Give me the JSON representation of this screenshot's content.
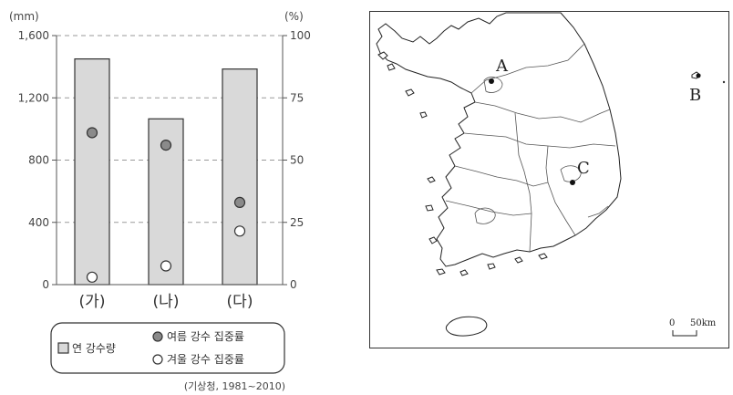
{
  "chart_data": {
    "type": "bar",
    "categories": [
      "(가)",
      "(나)",
      "(다)"
    ],
    "series": [
      {
        "name": "연 강수량",
        "axis": "left",
        "kind": "bar",
        "values": [
          1450,
          1065,
          1385
        ]
      },
      {
        "name": "여름 강수 집중률",
        "axis": "right",
        "kind": "scatter",
        "values": [
          61,
          56,
          33
        ]
      },
      {
        "name": "겨울 강수 집중률",
        "axis": "right",
        "kind": "scatter",
        "values": [
          3,
          7.5,
          21.5
        ]
      }
    ],
    "left_axis": {
      "unit": "(mm)",
      "ylim": [
        0,
        1600
      ],
      "ticks": [
        "0",
        "400",
        "800",
        "1,200",
        "1,600"
      ]
    },
    "right_axis": {
      "unit": "(%)",
      "ylim": [
        0,
        100
      ],
      "ticks": [
        "0",
        "25",
        "50",
        "75",
        "100"
      ]
    },
    "grid": true,
    "legend_position": "bottom",
    "source": "(기상청, 1981~2010)"
  },
  "map": {
    "labels": [
      "A",
      "B",
      "C"
    ],
    "scale_zero": "0",
    "scale_text": "50km"
  }
}
